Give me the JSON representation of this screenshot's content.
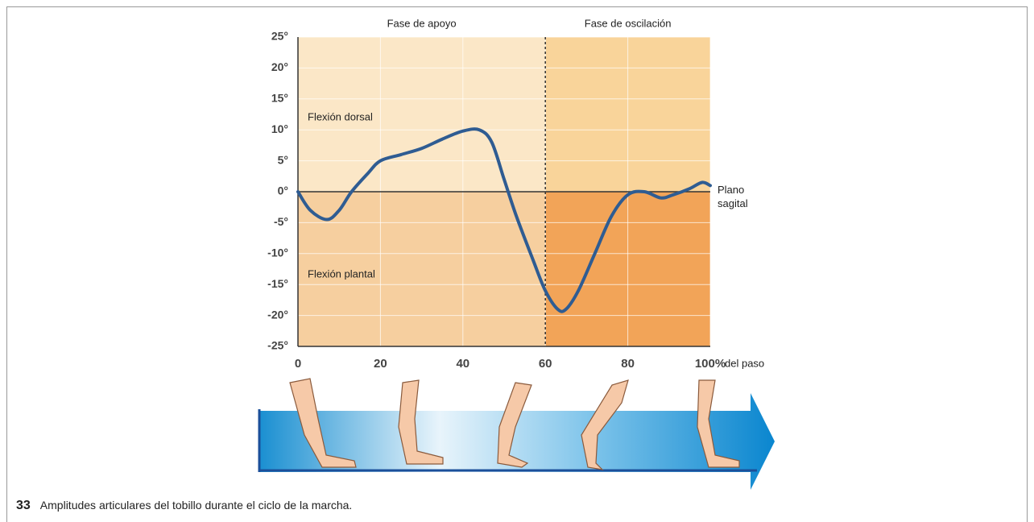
{
  "chart_data": {
    "type": "line",
    "phases": [
      {
        "label": "Fase de apoyo",
        "start": 0,
        "end": 60
      },
      {
        "label": "Fase de oscilación",
        "start": 60,
        "end": 100
      }
    ],
    "region_labels": [
      "Flexión dorsal",
      "Flexión plantal"
    ],
    "x": [
      0,
      3,
      7,
      10,
      13,
      17,
      20,
      25,
      30,
      35,
      40,
      44,
      47,
      50,
      53,
      57,
      60,
      63,
      65,
      68,
      72,
      76,
      80,
      84,
      88,
      91,
      95,
      98,
      100
    ],
    "series": [
      {
        "name": "Plano sagital",
        "color": "#2f5c92",
        "values": [
          0,
          -3,
          -4.5,
          -3,
          0,
          3,
          5,
          6,
          7,
          8.5,
          9.8,
          10,
          8,
          2,
          -4,
          -11,
          -16,
          -19,
          -19,
          -16,
          -10,
          -4,
          -0.5,
          0,
          -1,
          -0.5,
          0.5,
          1.5,
          1
        ]
      }
    ],
    "xlim": [
      0,
      100
    ],
    "xticks": [
      0,
      20,
      40,
      60,
      80,
      {
        "value": 100,
        "label": "100%"
      }
    ],
    "xlabel": "del paso",
    "ylim": [
      -25,
      25
    ],
    "yticks": [
      {
        "value": -25,
        "label": "-25°"
      },
      {
        "value": -20,
        "label": "-20°"
      },
      {
        "value": -15,
        "label": "-15°"
      },
      {
        "value": -10,
        "label": "-10°"
      },
      {
        "value": -5,
        "label": "-5°"
      },
      {
        "value": 0,
        "label": "0°"
      },
      {
        "value": 5,
        "label": "5°"
      },
      {
        "value": 10,
        "label": "10°"
      },
      {
        "value": 15,
        "label": "15°"
      },
      {
        "value": 20,
        "label": "20°"
      },
      {
        "value": 25,
        "label": "25°"
      }
    ],
    "grid": true
  },
  "figure_number": "33",
  "caption": "Amplitudes articulares del tobillo durante el ciclo de la marcha."
}
